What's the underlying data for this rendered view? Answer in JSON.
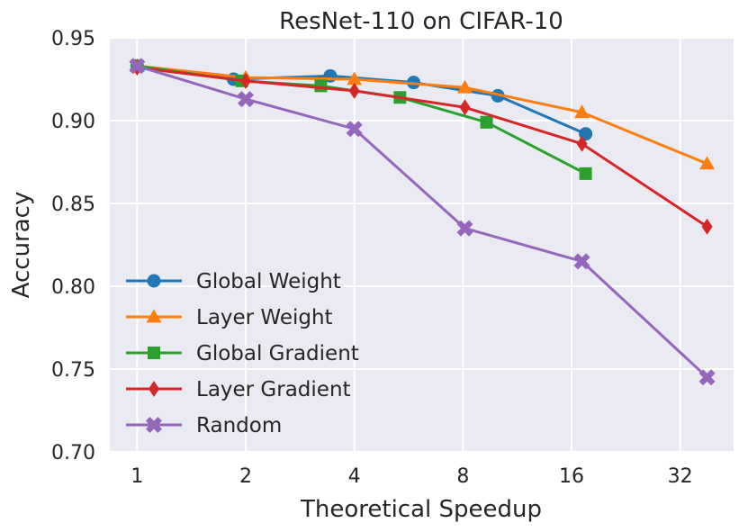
{
  "chart_data": {
    "type": "line",
    "title": "ResNet-110 on CIFAR-10",
    "xlabel": "Theoretical Speedup",
    "ylabel": "Accuracy",
    "x_scale": "log2",
    "x_ticks": [
      1,
      2,
      4,
      8,
      16,
      32
    ],
    "x_tick_labels": [
      "1",
      "2",
      "4",
      "8",
      "16",
      "32"
    ],
    "xlim": [
      0.84,
      45
    ],
    "y_ticks": [
      0.7,
      0.75,
      0.8,
      0.85,
      0.9,
      0.95
    ],
    "y_tick_labels": [
      "0.70",
      "0.75",
      "0.80",
      "0.85",
      "0.90",
      "0.95"
    ],
    "ylim": [
      0.7,
      0.95
    ],
    "grid": true,
    "background": "#eaeaf2",
    "legend_position": "lower-left",
    "series": [
      {
        "name": "Global Weight",
        "color": "#1f77b4",
        "marker": "circle",
        "x": [
          1,
          1.85,
          3.43,
          5.84,
          10.0,
          17.5
        ],
        "y": [
          0.933,
          0.925,
          0.927,
          0.923,
          0.915,
          0.892
        ]
      },
      {
        "name": "Layer Weight",
        "color": "#ff7f0e",
        "marker": "triangle",
        "x": [
          1,
          2,
          4,
          8.1,
          17.1,
          38.0
        ],
        "y": [
          0.933,
          0.926,
          0.925,
          0.92,
          0.905,
          0.874
        ]
      },
      {
        "name": "Global Gradient",
        "color": "#2ca02c",
        "marker": "square",
        "x": [
          1,
          1.95,
          3.23,
          5.35,
          9.3,
          17.5
        ],
        "y": [
          0.933,
          0.924,
          0.921,
          0.914,
          0.899,
          0.868
        ]
      },
      {
        "name": "Layer Gradient",
        "color": "#d62728",
        "marker": "diamond",
        "x": [
          1,
          2,
          4,
          8.1,
          17.1,
          38.0
        ],
        "y": [
          0.932,
          0.924,
          0.918,
          0.908,
          0.886,
          0.836
        ]
      },
      {
        "name": "Random",
        "color": "#9467bd",
        "marker": "x",
        "x": [
          1,
          2,
          4,
          8.1,
          17.1,
          38.0
        ],
        "y": [
          0.933,
          0.913,
          0.895,
          0.835,
          0.815,
          0.745
        ]
      }
    ]
  }
}
